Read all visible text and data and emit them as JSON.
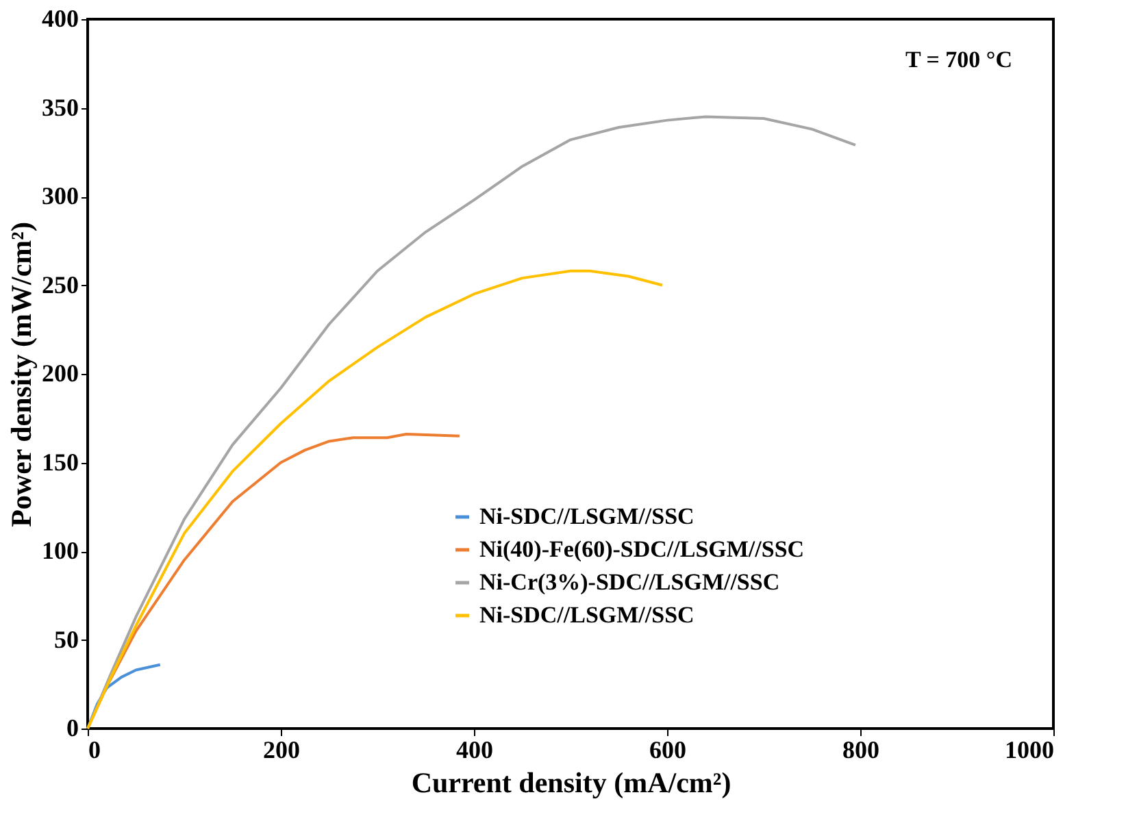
{
  "chart_data": {
    "type": "line",
    "xlabel": "Current density (mA/cm²)",
    "ylabel": "Power density (mW/cm²)",
    "annotations": [
      "T = 700 °C"
    ],
    "xlim": [
      0,
      1000
    ],
    "xticks": [
      0,
      200,
      400,
      600,
      800,
      1000
    ],
    "ylim": [
      0,
      400
    ],
    "yticks": [
      0,
      50,
      100,
      150,
      200,
      250,
      300,
      350,
      400
    ],
    "grid": false,
    "legend": "bottom",
    "marker": "none",
    "line_style": "solid",
    "series": [
      {
        "name": "Ni-SDC//LSGM//SSC",
        "color": "#4a90d9",
        "x": [
          0,
          10,
          20,
          35,
          50,
          75
        ],
        "values": [
          0,
          14,
          23,
          29,
          33,
          36
        ]
      },
      {
        "name": "Ni(40)-Fe(60)-SDC//LSGM//SSC",
        "color": "#ed7d31",
        "x": [
          0,
          20,
          50,
          100,
          150,
          200,
          225,
          250,
          275,
          310,
          330,
          385
        ],
        "values": [
          0,
          24,
          55,
          95,
          128,
          150,
          157,
          162,
          164,
          164,
          166,
          165
        ]
      },
      {
        "name": "Ni-Cr(3%)-SDC//LSGM//SSC",
        "color": "#a5a5a5",
        "x": [
          0,
          25,
          50,
          100,
          150,
          200,
          250,
          300,
          350,
          400,
          450,
          500,
          550,
          600,
          640,
          700,
          750,
          795
        ],
        "values": [
          0,
          32,
          63,
          118,
          160,
          192,
          228,
          258,
          280,
          298,
          317,
          332,
          339,
          343,
          345,
          344,
          338,
          329
        ]
      },
      {
        "name": "Ni-SDC//LSGM//SSC",
        "color": "#ffc000",
        "x": [
          0,
          25,
          50,
          100,
          150,
          200,
          250,
          300,
          350,
          400,
          450,
          500,
          520,
          560,
          595
        ],
        "values": [
          0,
          30,
          58,
          110,
          145,
          172,
          196,
          215,
          232,
          245,
          254,
          258,
          258,
          255,
          250
        ]
      }
    ]
  }
}
